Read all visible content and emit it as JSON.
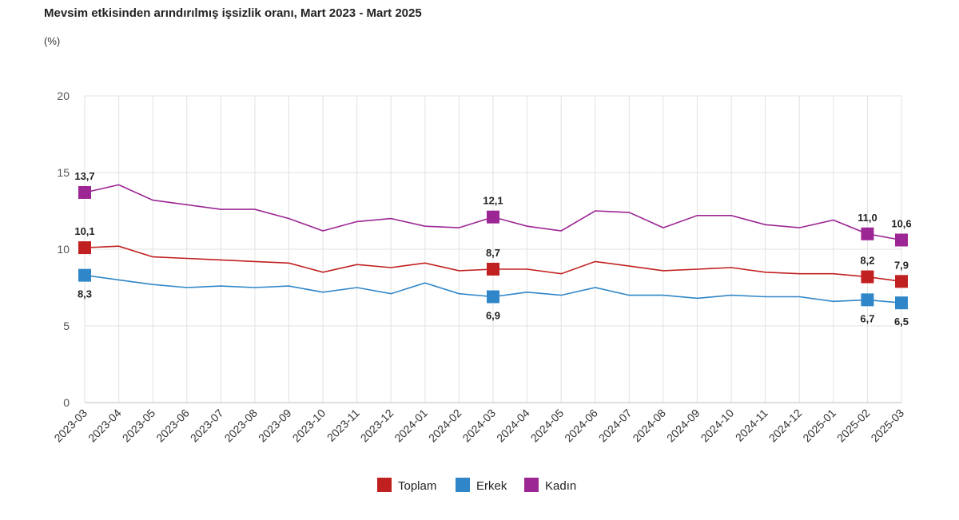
{
  "chart_data": {
    "type": "line",
    "title": "Mevsim etkisinden arındırılmış işsizlik oranı, Mart 2023 - Mart 2025",
    "subtitle": "(%)",
    "ylim": [
      0,
      20
    ],
    "yticks": [
      0,
      5,
      10,
      15,
      20
    ],
    "grid": true,
    "legend_position": "bottom",
    "categories": [
      "2023-03",
      "2023-04",
      "2023-05",
      "2023-06",
      "2023-07",
      "2023-08",
      "2023-09",
      "2023-10",
      "2023-11",
      "2023-12",
      "2024-01",
      "2024-02",
      "2024-03",
      "2024-04",
      "2024-05",
      "2024-06",
      "2024-07",
      "2024-08",
      "2024-09",
      "2024-10",
      "2024-11",
      "2024-12",
      "2025-01",
      "2025-02",
      "2025-03"
    ],
    "series": [
      {
        "name": "Toplam",
        "color": "#c0201f",
        "values": [
          10.1,
          10.2,
          9.5,
          9.4,
          9.3,
          9.2,
          9.1,
          8.5,
          9.0,
          8.8,
          9.1,
          8.6,
          8.7,
          8.7,
          8.4,
          9.2,
          8.9,
          8.6,
          8.7,
          8.8,
          8.5,
          8.4,
          8.4,
          8.2,
          7.9
        ]
      },
      {
        "name": "Erkek",
        "color": "#2f86c8",
        "values": [
          8.3,
          8.0,
          7.7,
          7.5,
          7.6,
          7.5,
          7.6,
          7.2,
          7.5,
          7.1,
          7.8,
          7.1,
          6.9,
          7.2,
          7.0,
          7.5,
          7.0,
          7.0,
          6.8,
          7.0,
          6.9,
          6.9,
          6.6,
          6.7,
          6.5
        ]
      },
      {
        "name": "Kadın",
        "color": "#9c2694",
        "values": [
          13.7,
          14.2,
          13.2,
          12.9,
          12.6,
          12.6,
          12.0,
          11.2,
          11.8,
          12.0,
          11.5,
          11.4,
          12.1,
          11.5,
          11.2,
          12.5,
          12.4,
          11.4,
          12.2,
          12.2,
          11.6,
          11.4,
          11.9,
          11.0,
          10.6
        ]
      }
    ],
    "data_labels": [
      {
        "series": 0,
        "index": 0,
        "text": "10,1",
        "pos": "above"
      },
      {
        "series": 0,
        "index": 12,
        "text": "8,7",
        "pos": "above"
      },
      {
        "series": 0,
        "index": 23,
        "text": "8,2",
        "pos": "above"
      },
      {
        "series": 0,
        "index": 24,
        "text": "7,9",
        "pos": "above"
      },
      {
        "series": 1,
        "index": 0,
        "text": "8,3",
        "pos": "below"
      },
      {
        "series": 1,
        "index": 12,
        "text": "6,9",
        "pos": "below"
      },
      {
        "series": 1,
        "index": 23,
        "text": "6,7",
        "pos": "below"
      },
      {
        "series": 1,
        "index": 24,
        "text": "6,5",
        "pos": "below"
      },
      {
        "series": 2,
        "index": 0,
        "text": "13,7",
        "pos": "above"
      },
      {
        "series": 2,
        "index": 12,
        "text": "12,1",
        "pos": "above"
      },
      {
        "series": 2,
        "index": 23,
        "text": "11,0",
        "pos": "above"
      },
      {
        "series": 2,
        "index": 24,
        "text": "10,6",
        "pos": "above"
      }
    ],
    "marker_indices": [
      0,
      12,
      23,
      24
    ]
  }
}
